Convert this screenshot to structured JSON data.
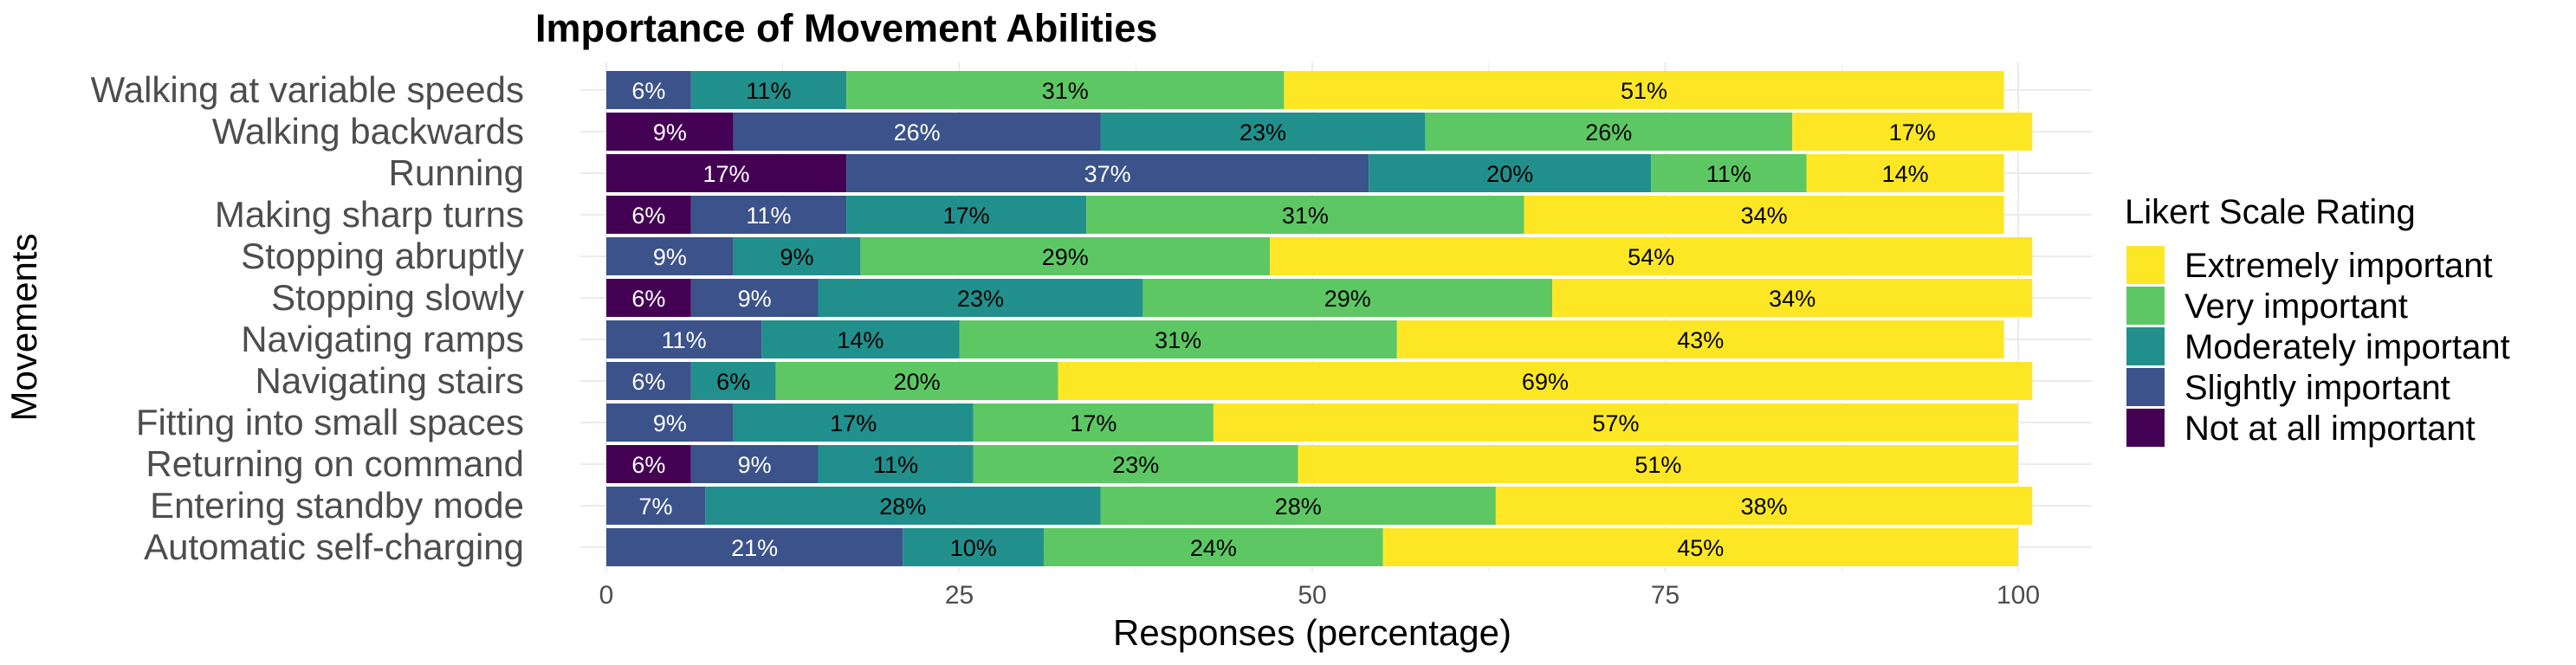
{
  "chart_data": {
    "type": "bar",
    "orientation": "horizontal",
    "stacked": true,
    "title": "Importance of Movement Abilities",
    "xlabel": "Responses (percentage)",
    "ylabel": "Movements",
    "xlim": [
      0,
      100
    ],
    "xticks": [
      "0",
      "25",
      "50",
      "75",
      "100"
    ],
    "categories": [
      "Walking at variable speeds",
      "Walking backwards",
      "Running",
      "Making sharp turns",
      "Stopping abruptly",
      "Stopping slowly",
      "Navigating ramps",
      "Navigating stairs",
      "Fitting into small spaces",
      "Returning on command",
      "Entering standby mode",
      "Automatic self-charging"
    ],
    "series": [
      {
        "name": "Not at all important",
        "color": "#440154",
        "text_color": "#ffffff",
        "values": [
          0,
          9,
          17,
          6,
          0,
          6,
          0,
          0,
          0,
          6,
          0,
          0
        ]
      },
      {
        "name": "Slightly important",
        "color": "#3b528b",
        "text_color": "#ffffff",
        "values": [
          6,
          26,
          37,
          11,
          9,
          9,
          11,
          6,
          9,
          9,
          7,
          21
        ]
      },
      {
        "name": "Moderately important",
        "color": "#21908c",
        "text_color": "#000000",
        "values": [
          11,
          23,
          20,
          17,
          9,
          23,
          14,
          6,
          17,
          11,
          28,
          10
        ]
      },
      {
        "name": "Very important",
        "color": "#5dc863",
        "text_color": "#000000",
        "values": [
          31,
          26,
          11,
          31,
          29,
          29,
          31,
          20,
          17,
          23,
          28,
          24
        ]
      },
      {
        "name": "Extremely important",
        "color": "#fde725",
        "text_color": "#000000",
        "values": [
          51,
          17,
          14,
          34,
          54,
          34,
          43,
          69,
          57,
          51,
          38,
          45
        ]
      }
    ],
    "legend": {
      "title": "Likert Scale Rating",
      "position": "right",
      "order": [
        "Extremely important",
        "Very important",
        "Moderately important",
        "Slightly important",
        "Not at all important"
      ]
    },
    "grid": true
  }
}
